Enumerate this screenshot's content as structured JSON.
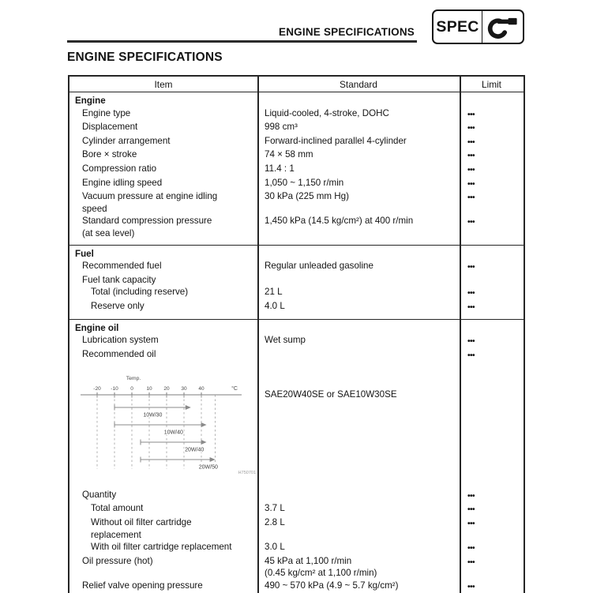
{
  "page": {
    "running_header": "ENGINE SPECIFICATIONS",
    "title": "ENGINE SPECIFICATIONS",
    "spec_badge": {
      "label": "SPEC",
      "icon": "micrometer-icon"
    }
  },
  "colors": {
    "ink": "#141414",
    "chart_line": "#8a8a8a"
  },
  "table": {
    "columns": [
      "Item",
      "Standard",
      "Limit"
    ],
    "limit_marker": "•••",
    "sections": [
      {
        "heading": "Engine",
        "rows": [
          {
            "item": "Engine type",
            "indent": 1,
            "standard": "Liquid-cooled, 4-stroke, DOHC",
            "limit": "•••"
          },
          {
            "item": "Displacement",
            "indent": 1,
            "standard": "998 cm³",
            "limit": "•••"
          },
          {
            "item": "Cylinder arrangement",
            "indent": 1,
            "standard": "Forward-inclined parallel 4-cylinder",
            "limit": "•••"
          },
          {
            "item": "Bore × stroke",
            "indent": 1,
            "standard": "74 × 58 mm",
            "limit": "•••"
          },
          {
            "item": "Compression ratio",
            "indent": 1,
            "standard": "11.4 : 1",
            "limit": "•••"
          },
          {
            "item": "Engine idling speed",
            "indent": 1,
            "standard": "1,050 ~ 1,150 r/min",
            "limit": "•••"
          },
          {
            "item": "Vacuum pressure at engine idling\nspeed",
            "indent": 1,
            "standard": "30 kPa (225 mm Hg)",
            "limit": "•••"
          },
          {
            "item": "Standard compression pressure\n(at sea level)",
            "indent": 1,
            "standard": "1,450 kPa (14.5 kg/cm²) at 400 r/min",
            "limit": "•••"
          }
        ]
      },
      {
        "heading": "Fuel",
        "rows": [
          {
            "item": "Recommended fuel",
            "indent": 1,
            "standard": "Regular unleaded gasoline",
            "limit": "•••"
          },
          {
            "item": "Fuel tank capacity",
            "indent": 1,
            "standard": "",
            "limit": ""
          },
          {
            "item": "Total (including reserve)",
            "indent": 2,
            "standard": "21 L",
            "limit": "•••"
          },
          {
            "item": "Reserve only",
            "indent": 2,
            "standard": "4.0 L",
            "limit": "•••"
          }
        ]
      },
      {
        "heading": "Engine oil",
        "rows": [
          {
            "item": "Lubrication system",
            "indent": 1,
            "standard": "Wet sump",
            "limit": "•••"
          },
          {
            "item": "Recommended oil",
            "indent": 1,
            "standard": "",
            "limit": "•••"
          },
          {
            "item": "",
            "chart": true,
            "indent": 1,
            "standard": "SAE20W40SE or SAE10W30SE",
            "limit": ""
          },
          {
            "item": "Quantity",
            "indent": 1,
            "standard": "",
            "limit": "•••"
          },
          {
            "item": "Total amount",
            "indent": 2,
            "standard": "3.7 L",
            "limit": "•••"
          },
          {
            "item": "Without oil filter cartridge\nreplacement",
            "indent": 2,
            "standard": "2.8 L",
            "limit": "•••"
          },
          {
            "item": "With oil filter cartridge replacement",
            "indent": 2,
            "standard": "3.0 L",
            "limit": "•••"
          },
          {
            "item": "Oil pressure (hot)",
            "indent": 1,
            "standard": "45 kPa at 1,100 r/min\n(0.45 kg/cm² at 1,100 r/min)",
            "limit": "•••"
          },
          {
            "item": "Relief valve opening pressure",
            "indent": 1,
            "standard": "490 ~ 570 kPa (4.9 ~ 5.7 kg/cm²)",
            "limit": "•••"
          }
        ]
      }
    ]
  },
  "chart_data": {
    "type": "bar",
    "title": "Temp.",
    "unit_label": "°C",
    "xlabel": "Temperature (°C)",
    "x_ticks": [
      -20,
      -10,
      0,
      10,
      20,
      30,
      40
    ],
    "xlim": [
      -28,
      52
    ],
    "extra_gridline": 48,
    "grid": "dashed-vertical",
    "series": [
      {
        "name": "10W/30",
        "range": [
          -10,
          34
        ],
        "label_t": 12
      },
      {
        "name": "10W/40",
        "range": [
          -10,
          43
        ],
        "label_t": 24
      },
      {
        "name": "20W/40",
        "range": [
          5,
          43
        ],
        "label_t": 36
      },
      {
        "name": "20W/50",
        "range": [
          5,
          48
        ],
        "label_t": 44
      }
    ],
    "figure_code": "H750701"
  }
}
